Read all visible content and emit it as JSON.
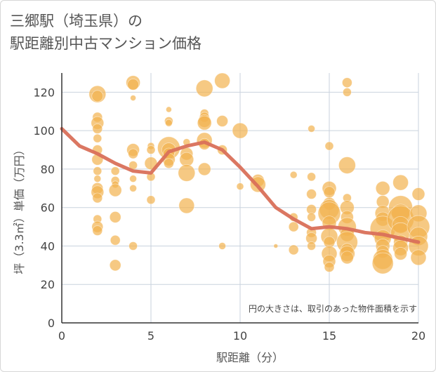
{
  "title_line1": "三郷駅（埼玉県）の",
  "title_line2": "駅距離別中古マンション価格",
  "chart_data": {
    "type": "scatter",
    "xlabel": "駅距離（分）",
    "ylabel": "坪（3.3㎡）単価（万円）",
    "xlim": [
      0,
      20
    ],
    "ylim": [
      0,
      130
    ],
    "xticks": [
      0,
      5,
      10,
      15,
      20
    ],
    "yticks": [
      0,
      20,
      40,
      60,
      80,
      100,
      120
    ],
    "grid": true,
    "annotation": "円の大きさは、取引のあった物件面積を示す",
    "colors": {
      "bubble": "#f2b24f",
      "trend": "#d9705a",
      "grid": "#c9d2de",
      "axis_text": "#444444"
    },
    "points": [
      {
        "x": 2,
        "y": 119,
        "s": 12
      },
      {
        "x": 2,
        "y": 118,
        "s": 8
      },
      {
        "x": 2,
        "y": 107,
        "s": 7
      },
      {
        "x": 2,
        "y": 104,
        "s": 9
      },
      {
        "x": 2,
        "y": 101,
        "s": 7
      },
      {
        "x": 2,
        "y": 96,
        "s": 6
      },
      {
        "x": 2,
        "y": 90,
        "s": 7
      },
      {
        "x": 2,
        "y": 85,
        "s": 8
      },
      {
        "x": 2,
        "y": 79,
        "s": 6
      },
      {
        "x": 2,
        "y": 75,
        "s": 5
      },
      {
        "x": 2,
        "y": 70,
        "s": 8
      },
      {
        "x": 2,
        "y": 68,
        "s": 9
      },
      {
        "x": 2,
        "y": 65,
        "s": 7
      },
      {
        "x": 2,
        "y": 54,
        "s": 6
      },
      {
        "x": 2,
        "y": 50,
        "s": 8
      },
      {
        "x": 2,
        "y": 48,
        "s": 7
      },
      {
        "x": 3,
        "y": 79,
        "s": 6
      },
      {
        "x": 3,
        "y": 74,
        "s": 6
      },
      {
        "x": 3,
        "y": 72,
        "s": 5
      },
      {
        "x": 3,
        "y": 69,
        "s": 9
      },
      {
        "x": 3,
        "y": 55,
        "s": 8
      },
      {
        "x": 3,
        "y": 43,
        "s": 7
      },
      {
        "x": 3,
        "y": 30,
        "s": 8
      },
      {
        "x": 4,
        "y": 125,
        "s": 10
      },
      {
        "x": 4,
        "y": 124,
        "s": 8
      },
      {
        "x": 4,
        "y": 117,
        "s": 4
      },
      {
        "x": 4,
        "y": 90,
        "s": 9
      },
      {
        "x": 4,
        "y": 88,
        "s": 7
      },
      {
        "x": 4,
        "y": 82,
        "s": 6
      },
      {
        "x": 4,
        "y": 75,
        "s": 5
      },
      {
        "x": 4,
        "y": 70,
        "s": 5
      },
      {
        "x": 4,
        "y": 40,
        "s": 6
      },
      {
        "x": 5,
        "y": 92,
        "s": 5
      },
      {
        "x": 5,
        "y": 90,
        "s": 6
      },
      {
        "x": 5,
        "y": 83,
        "s": 9
      },
      {
        "x": 5,
        "y": 76,
        "s": 6
      },
      {
        "x": 5,
        "y": 64,
        "s": 6
      },
      {
        "x": 6,
        "y": 111,
        "s": 4
      },
      {
        "x": 6,
        "y": 105,
        "s": 6
      },
      {
        "x": 6,
        "y": 104,
        "s": 5
      },
      {
        "x": 6,
        "y": 91,
        "s": 16
      },
      {
        "x": 6,
        "y": 90,
        "s": 10
      },
      {
        "x": 6,
        "y": 88,
        "s": 8
      },
      {
        "x": 6,
        "y": 85,
        "s": 9
      },
      {
        "x": 6,
        "y": 83,
        "s": 7
      },
      {
        "x": 7,
        "y": 94,
        "s": 5
      },
      {
        "x": 7,
        "y": 88,
        "s": 9
      },
      {
        "x": 7,
        "y": 85,
        "s": 10
      },
      {
        "x": 7,
        "y": 78,
        "s": 12
      },
      {
        "x": 7,
        "y": 61,
        "s": 11
      },
      {
        "x": 8,
        "y": 122,
        "s": 12
      },
      {
        "x": 8,
        "y": 109,
        "s": 6
      },
      {
        "x": 8,
        "y": 107,
        "s": 7
      },
      {
        "x": 8,
        "y": 105,
        "s": 9
      },
      {
        "x": 8,
        "y": 104,
        "s": 10
      },
      {
        "x": 8,
        "y": 95,
        "s": 11
      },
      {
        "x": 8,
        "y": 93,
        "s": 8
      },
      {
        "x": 8,
        "y": 80,
        "s": 9
      },
      {
        "x": 9,
        "y": 126,
        "s": 11
      },
      {
        "x": 9,
        "y": 105,
        "s": 8
      },
      {
        "x": 9,
        "y": 90,
        "s": 7
      },
      {
        "x": 9,
        "y": 40,
        "s": 5
      },
      {
        "x": 10,
        "y": 100,
        "s": 11
      },
      {
        "x": 10,
        "y": 71,
        "s": 5
      },
      {
        "x": 11,
        "y": 74,
        "s": 9
      },
      {
        "x": 11,
        "y": 72,
        "s": 11
      },
      {
        "x": 12,
        "y": 40,
        "s": 3
      },
      {
        "x": 13,
        "y": 77,
        "s": 5
      },
      {
        "x": 13,
        "y": 55,
        "s": 6
      },
      {
        "x": 13,
        "y": 50,
        "s": 7
      },
      {
        "x": 13,
        "y": 38,
        "s": 7
      },
      {
        "x": 14,
        "y": 101,
        "s": 5
      },
      {
        "x": 14,
        "y": 76,
        "s": 6
      },
      {
        "x": 14,
        "y": 67,
        "s": 7
      },
      {
        "x": 14,
        "y": 59,
        "s": 7
      },
      {
        "x": 14,
        "y": 55,
        "s": 6
      },
      {
        "x": 14,
        "y": 47,
        "s": 7
      },
      {
        "x": 14,
        "y": 44,
        "s": 8
      },
      {
        "x": 14,
        "y": 40,
        "s": 6
      },
      {
        "x": 15,
        "y": 92,
        "s": 6
      },
      {
        "x": 15,
        "y": 70,
        "s": 10
      },
      {
        "x": 15,
        "y": 68,
        "s": 8
      },
      {
        "x": 15,
        "y": 62,
        "s": 9
      },
      {
        "x": 15,
        "y": 59,
        "s": 14
      },
      {
        "x": 15,
        "y": 57,
        "s": 16
      },
      {
        "x": 15,
        "y": 52,
        "s": 10
      },
      {
        "x": 15,
        "y": 45,
        "s": 12
      },
      {
        "x": 15,
        "y": 42,
        "s": 8
      },
      {
        "x": 15,
        "y": 36,
        "s": 11
      },
      {
        "x": 15,
        "y": 32,
        "s": 9
      },
      {
        "x": 15,
        "y": 29,
        "s": 7
      },
      {
        "x": 16,
        "y": 125,
        "s": 7
      },
      {
        "x": 16,
        "y": 120,
        "s": 6
      },
      {
        "x": 16,
        "y": 82,
        "s": 12
      },
      {
        "x": 16,
        "y": 65,
        "s": 6
      },
      {
        "x": 16,
        "y": 60,
        "s": 10
      },
      {
        "x": 16,
        "y": 55,
        "s": 9
      },
      {
        "x": 16,
        "y": 50,
        "s": 13
      },
      {
        "x": 16,
        "y": 46,
        "s": 10
      },
      {
        "x": 16,
        "y": 42,
        "s": 15
      },
      {
        "x": 16,
        "y": 38,
        "s": 9
      },
      {
        "x": 16,
        "y": 36,
        "s": 11
      },
      {
        "x": 16,
        "y": 34,
        "s": 9
      },
      {
        "x": 18,
        "y": 70,
        "s": 10
      },
      {
        "x": 18,
        "y": 63,
        "s": 9
      },
      {
        "x": 18,
        "y": 57,
        "s": 11
      },
      {
        "x": 18,
        "y": 54,
        "s": 10
      },
      {
        "x": 18,
        "y": 49,
        "s": 18
      },
      {
        "x": 18,
        "y": 44,
        "s": 12
      },
      {
        "x": 18,
        "y": 40,
        "s": 10
      },
      {
        "x": 18,
        "y": 37,
        "s": 9
      },
      {
        "x": 18,
        "y": 33,
        "s": 14
      },
      {
        "x": 18,
        "y": 31,
        "s": 15
      },
      {
        "x": 19,
        "y": 73,
        "s": 11
      },
      {
        "x": 19,
        "y": 60,
        "s": 17
      },
      {
        "x": 19,
        "y": 57,
        "s": 13
      },
      {
        "x": 19,
        "y": 54,
        "s": 19
      },
      {
        "x": 19,
        "y": 51,
        "s": 12
      },
      {
        "x": 19,
        "y": 47,
        "s": 14
      },
      {
        "x": 19,
        "y": 42,
        "s": 10
      },
      {
        "x": 19,
        "y": 39,
        "s": 11
      },
      {
        "x": 19,
        "y": 36,
        "s": 9
      },
      {
        "x": 20,
        "y": 67,
        "s": 9
      },
      {
        "x": 20,
        "y": 57,
        "s": 12
      },
      {
        "x": 20,
        "y": 50,
        "s": 16
      },
      {
        "x": 20,
        "y": 45,
        "s": 13
      },
      {
        "x": 20,
        "y": 40,
        "s": 14
      },
      {
        "x": 20,
        "y": 34,
        "s": 11
      }
    ],
    "trend": {
      "x": [
        0,
        1,
        2,
        3,
        4,
        5,
        6,
        7,
        8,
        9,
        10,
        11,
        12,
        13,
        14,
        15,
        16,
        17,
        18,
        19,
        20
      ],
      "y": [
        101,
        92,
        88,
        83,
        79,
        78,
        89,
        92,
        94,
        90,
        81,
        71,
        60,
        54,
        49,
        50,
        49,
        47,
        46,
        44,
        42
      ]
    }
  }
}
